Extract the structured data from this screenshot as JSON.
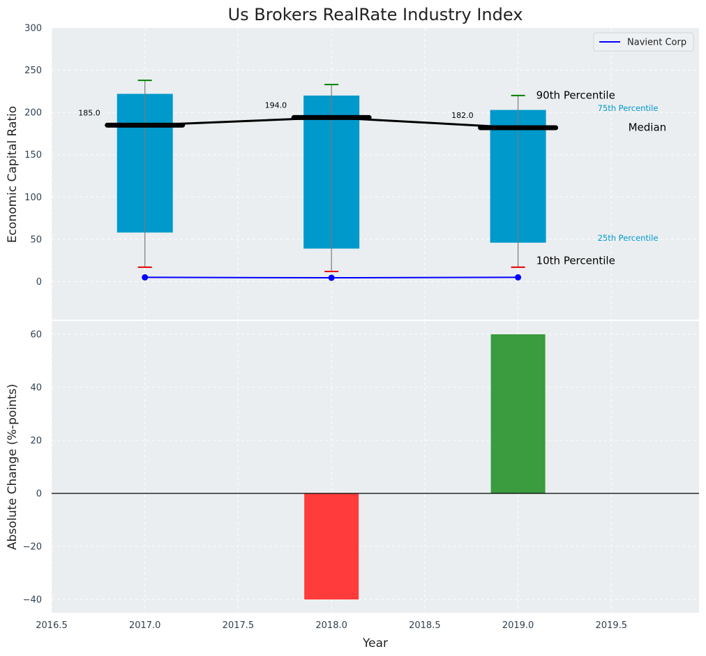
{
  "colors": {
    "panel_bg": "#eaeef0",
    "box": "#0099cc",
    "median": "#000000",
    "whisker": "#7a7a7a",
    "p90_cap": "#008000",
    "p10_cap": "#e60000",
    "company_line": "#0000ff",
    "positive": "#3a9b3f",
    "negative": "#ff3b3b",
    "label_blue": "#0099cc"
  },
  "chart_data": [
    {
      "type": "box-percentile",
      "title": "Us Brokers RealRate Industry Index",
      "xlabel": "",
      "ylabel": "Economic Capital Ratio",
      "xlim": [
        2016.5,
        2019.97
      ],
      "ylim": [
        -45,
        300
      ],
      "yticks": [
        0,
        50,
        100,
        150,
        200,
        250,
        300
      ],
      "ytick_labels": [
        "0",
        "50",
        "100",
        "150",
        "200",
        "250",
        "300"
      ],
      "x": [
        2017.0,
        2018.0,
        2019.0
      ],
      "p10": [
        17,
        12,
        17
      ],
      "p25": [
        58,
        39,
        46
      ],
      "median": [
        185.0,
        194.0,
        182.0
      ],
      "median_labels": [
        "185.0",
        "194.0",
        "182.0"
      ],
      "p75": [
        222,
        220,
        203
      ],
      "p90": [
        238,
        233,
        220
      ],
      "series": [
        {
          "name": "Navient Corp",
          "values": [
            5,
            4.5,
            5
          ]
        }
      ],
      "legend": {
        "placement": "top-right",
        "entries": [
          "Navient Corp"
        ]
      },
      "annotations": {
        "p90": "90th Percentile",
        "p75": "75th Percentile",
        "median": "Median",
        "p25": "25th Percentile",
        "p10": "10th Percentile"
      },
      "grid": true
    },
    {
      "type": "bar",
      "xlabel": "Year",
      "ylabel": "Absolute Change (%-points)",
      "xlim": [
        2016.5,
        2019.97
      ],
      "ylim": [
        -45,
        65
      ],
      "yticks": [
        -40,
        -20,
        0,
        20,
        40,
        60
      ],
      "ytick_labels": [
        "−40",
        "−20",
        "0",
        "20",
        "40",
        "60"
      ],
      "xticks": [
        2016.5,
        2017.0,
        2017.5,
        2018.0,
        2018.5,
        2019.0,
        2019.5
      ],
      "xtick_labels": [
        "2016.5",
        "2017.0",
        "2017.5",
        "2018.0",
        "2018.5",
        "2019.0",
        "2019.5"
      ],
      "x": [
        2018.0,
        2019.0
      ],
      "values": [
        -40,
        60
      ],
      "grid": true
    }
  ]
}
